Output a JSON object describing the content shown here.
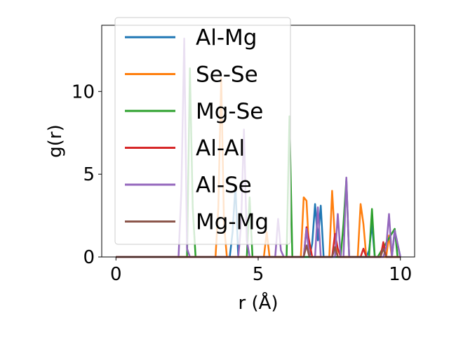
{
  "chart_data": {
    "type": "line",
    "xlabel": "r (Å)",
    "ylabel": "g(r)",
    "xlim": [
      -0.5,
      10.5
    ],
    "ylim": [
      0,
      14
    ],
    "x_ticks": [
      0,
      5,
      10
    ],
    "y_ticks": [
      0,
      5,
      10
    ],
    "x_tick_labels": [
      "0",
      "5",
      "10"
    ],
    "y_tick_labels": [
      "0",
      "5",
      "10"
    ],
    "grid": false,
    "legend_position": "upper-left",
    "series": [
      {
        "name": "Al-Mg",
        "color": "#1f77b4",
        "x": [
          0,
          4.0,
          4.1,
          4.2,
          4.3,
          6.8,
          6.9,
          7.0,
          7.1,
          7.2,
          7.3,
          8.8,
          8.9,
          9.0,
          9.1,
          9.7,
          9.8,
          10.0
        ],
        "y": [
          0,
          0,
          1.5,
          4.3,
          0,
          0,
          0.8,
          3.2,
          1.0,
          3.1,
          0,
          0,
          0.4,
          2.0,
          0,
          0,
          1.6,
          0
        ]
      },
      {
        "name": "Se-Se",
        "color": "#ff7f0e",
        "x": [
          0,
          3.5,
          3.6,
          3.7,
          3.8,
          3.9,
          5.2,
          5.3,
          5.4,
          6.5,
          6.6,
          6.7,
          6.8,
          6.9,
          7.5,
          7.6,
          7.7,
          7.8,
          8.5,
          8.6,
          8.7,
          8.8,
          9.5,
          9.6,
          9.7,
          10.0
        ],
        "y": [
          0,
          0,
          3.0,
          10.8,
          2.0,
          0,
          0,
          1.5,
          0,
          0,
          3.6,
          3.4,
          0,
          0,
          0,
          4.0,
          1.0,
          0,
          0,
          3.2,
          2.0,
          0,
          0,
          1.3,
          0,
          0
        ]
      },
      {
        "name": "Mg-Se",
        "color": "#2ca02c",
        "x": [
          0,
          2.5,
          2.6,
          2.7,
          2.8,
          4.6,
          4.7,
          4.8,
          6.0,
          6.1,
          6.2,
          6.3,
          7.9,
          8.0,
          8.1,
          8.2,
          8.9,
          9.0,
          9.1,
          9.2,
          9.8,
          9.9,
          10.0
        ],
        "y": [
          0,
          0,
          11.4,
          3.0,
          0,
          0,
          3.6,
          0,
          0,
          8.5,
          0,
          0,
          0,
          2.0,
          4.7,
          0,
          0,
          2.9,
          0,
          0,
          1.7,
          0,
          0
        ]
      },
      {
        "name": "Al-Al",
        "color": "#d62728",
        "x": [
          0,
          6.6,
          6.7,
          6.8,
          6.9,
          7.6,
          7.7,
          7.8,
          7.9,
          8.6,
          8.7,
          8.8,
          9.3,
          9.4,
          9.5,
          10.0
        ],
        "y": [
          0,
          0,
          1.8,
          0.9,
          0,
          0,
          1.4,
          0.5,
          0,
          0,
          0.5,
          0,
          0,
          0.9,
          0,
          0
        ]
      },
      {
        "name": "Al-Se",
        "color": "#9467bd",
        "x": [
          0,
          2.2,
          2.3,
          2.4,
          2.5,
          2.6,
          4.3,
          4.4,
          4.5,
          4.6,
          4.7,
          5.6,
          5.7,
          5.8,
          5.9,
          6.6,
          6.7,
          6.8,
          7.0,
          7.1,
          7.2,
          7.7,
          7.8,
          7.9,
          8.0,
          8.1,
          8.2,
          9.4,
          9.5,
          9.6,
          9.7,
          9.8,
          10.0
        ],
        "y": [
          0,
          0,
          4.0,
          13.2,
          0.5,
          0,
          0,
          2.0,
          7.7,
          1.0,
          0,
          0,
          2.3,
          0.4,
          0,
          0,
          1.7,
          0,
          0,
          3.0,
          0,
          0,
          2.6,
          0,
          0,
          4.8,
          0,
          0,
          0.6,
          2.6,
          0,
          1.6,
          0
        ]
      },
      {
        "name": "Mg-Mg",
        "color": "#8c564b",
        "x": [
          0,
          6.6,
          6.7,
          6.8,
          7.6,
          7.7,
          7.8,
          9.3,
          9.4,
          9.5,
          10.0
        ],
        "y": [
          0,
          0,
          0.7,
          0,
          0,
          0.6,
          0,
          0,
          0.5,
          0,
          0
        ]
      }
    ]
  }
}
